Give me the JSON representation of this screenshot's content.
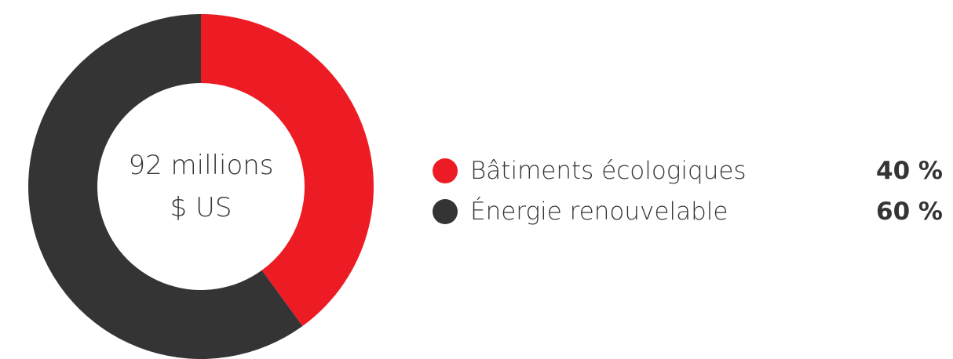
{
  "chart_data": {
    "type": "pie",
    "variant": "donut",
    "center_label": [
      "92 millions",
      "$ US"
    ],
    "categories": [
      "Bâtiments écologiques",
      "Énergie renouvelable"
    ],
    "values": [
      40,
      60
    ],
    "value_labels": [
      "40 %",
      "60 %"
    ],
    "colors": [
      "#ed1c24",
      "#343434"
    ],
    "legend_position": "right"
  }
}
